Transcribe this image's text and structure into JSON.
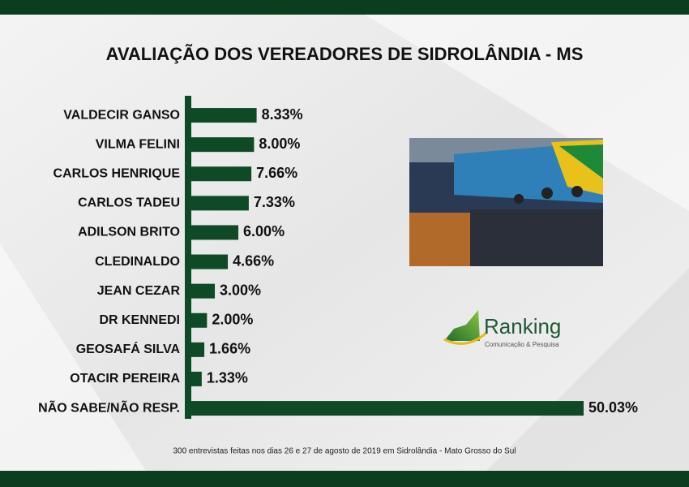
{
  "chart_data": {
    "type": "bar",
    "orientation": "horizontal",
    "title": "AVALIAÇÃO DOS VEREADORES DE SIDROLÂNDIA - MS",
    "categories": [
      "VALDECIR GANSO",
      "VILMA FELINI",
      "CARLOS HENRIQUE",
      "CARLOS TADEU",
      "ADILSON BRITO",
      "CLEDINALDO",
      "JEAN CEZAR",
      "DR KENNEDI",
      "GEOSAFÁ SILVA",
      "OTACIR PEREIRA",
      "NÃO SABE/NÃO RESP."
    ],
    "values": [
      8.33,
      8.0,
      7.66,
      7.33,
      6.0,
      4.66,
      3.0,
      2.0,
      1.66,
      1.33,
      50.03
    ],
    "value_labels": [
      "8.33%",
      "8.00%",
      "7.66%",
      "7.33%",
      "6.00%",
      "4.66%",
      "3.00%",
      "2.00%",
      "1.66%",
      "1.33%",
      "50.03%"
    ],
    "color": "#0f4a27",
    "footnote": "300 entrevistas feitas nos dias 26 e 27 de agosto de 2019 em Sidrolândia - Mato Grosso do Sul",
    "logo": {
      "name": "Ranking",
      "tagline": "Comunicação & Pesquisa"
    }
  }
}
